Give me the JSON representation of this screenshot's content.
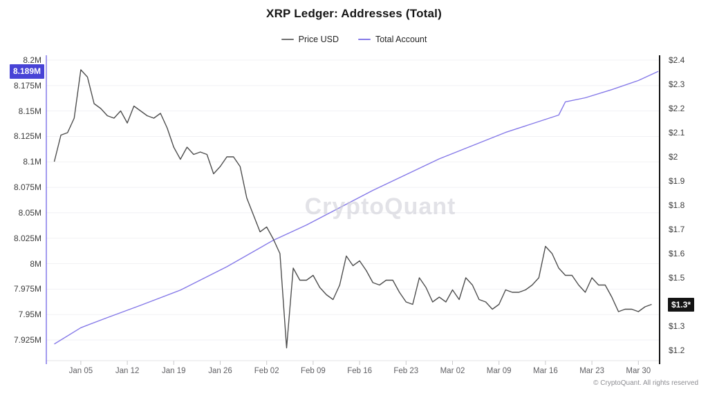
{
  "title": "XRP Ledger: Addresses (Total)",
  "watermark": "CryptoQuant",
  "footer": "© CryptoQuant. All rights reserved",
  "colors": {
    "price_line": "#4d4d4d",
    "total_account_line": "#8478e8",
    "left_axis_line": "#8478e8",
    "right_axis_line": "#111111",
    "left_badge_bg": "#4843d6",
    "right_badge_bg": "#141414",
    "gridline": "#f1f1f4",
    "bottom_axis": "#e3e3e6",
    "tick_mark": "#c9c9cc"
  },
  "legend": [
    {
      "label": "Price USD",
      "color": "#6e6e6e"
    },
    {
      "label": "Total Account",
      "color": "#8478e8"
    }
  ],
  "left_axis": {
    "ticks": [
      "8.2M",
      "8.175M",
      "8.15M",
      "8.125M",
      "8.1M",
      "8.075M",
      "8.05M",
      "8.025M",
      "8M",
      "7.975M",
      "7.95M",
      "7.925M"
    ],
    "badge": {
      "label": "8.189M",
      "value": 8.189
    }
  },
  "right_axis": {
    "ticks": [
      "$2.4",
      "$2.3",
      "$2.2",
      "$2.1",
      "$2",
      "$1.9",
      "$1.8",
      "$1.7",
      "$1.6",
      "$1.5",
      "$1.4",
      "$1.3",
      "$1.2"
    ],
    "badge": {
      "label": "$1.3*",
      "value": 1.39
    }
  },
  "x_axis": {
    "ticks": [
      "Jan 05",
      "Jan 12",
      "Jan 19",
      "Jan 26",
      "Feb 02",
      "Feb 09",
      "Feb 16",
      "Feb 23",
      "Mar 02",
      "Mar 09",
      "Mar 16",
      "Mar 23",
      "Mar 30"
    ],
    "tick_day_offsets": [
      4,
      11,
      18,
      25,
      32,
      39,
      46,
      53,
      60,
      67,
      74,
      81,
      88
    ]
  },
  "chart_data": {
    "type": "line",
    "x_range": {
      "start": "Jan 01",
      "end": "Apr 02",
      "unit": "day",
      "days": 91
    },
    "left_ylim": [
      7.925,
      8.2
    ],
    "right_ylim": [
      1.2,
      2.4
    ],
    "grid": "horizontal-faint",
    "legend_position": "top-center",
    "series": [
      {
        "name": "Price USD",
        "axis": "right",
        "unit": "USD",
        "start_day": 0,
        "interval_days": 1,
        "values": [
          1.98,
          2.09,
          2.1,
          2.16,
          2.36,
          2.33,
          2.22,
          2.2,
          2.17,
          2.16,
          2.19,
          2.14,
          2.21,
          2.19,
          2.17,
          2.16,
          2.18,
          2.12,
          2.04,
          1.99,
          2.04,
          2.01,
          2.02,
          2.01,
          1.93,
          1.96,
          2.0,
          2.0,
          1.96,
          1.83,
          1.76,
          1.69,
          1.71,
          1.66,
          1.6,
          1.21,
          1.54,
          1.49,
          1.49,
          1.51,
          1.46,
          1.43,
          1.41,
          1.47,
          1.59,
          1.55,
          1.57,
          1.53,
          1.48,
          1.47,
          1.49,
          1.49,
          1.44,
          1.4,
          1.39,
          1.5,
          1.46,
          1.4,
          1.42,
          1.4,
          1.45,
          1.41,
          1.5,
          1.47,
          1.41,
          1.4,
          1.37,
          1.39,
          1.45,
          1.44,
          1.44,
          1.45,
          1.47,
          1.5,
          1.63,
          1.6,
          1.54,
          1.51,
          1.51,
          1.47,
          1.44,
          1.5,
          1.47,
          1.47,
          1.42,
          1.36,
          1.37,
          1.37,
          1.36,
          1.38,
          1.39
        ]
      },
      {
        "name": "Total Account",
        "axis": "left",
        "unit": "millions of addresses",
        "points": [
          [
            0,
            7.921
          ],
          [
            4,
            7.937
          ],
          [
            8,
            7.947
          ],
          [
            13,
            7.959
          ],
          [
            19,
            7.974
          ],
          [
            26,
            7.997
          ],
          [
            33,
            8.023
          ],
          [
            38,
            8.038
          ],
          [
            48,
            8.072
          ],
          [
            58,
            8.103
          ],
          [
            68,
            8.129
          ],
          [
            76,
            8.146
          ],
          [
            77,
            8.159
          ],
          [
            80,
            8.163
          ],
          [
            84,
            8.171
          ],
          [
            88,
            8.18
          ],
          [
            91,
            8.189
          ]
        ]
      }
    ]
  }
}
